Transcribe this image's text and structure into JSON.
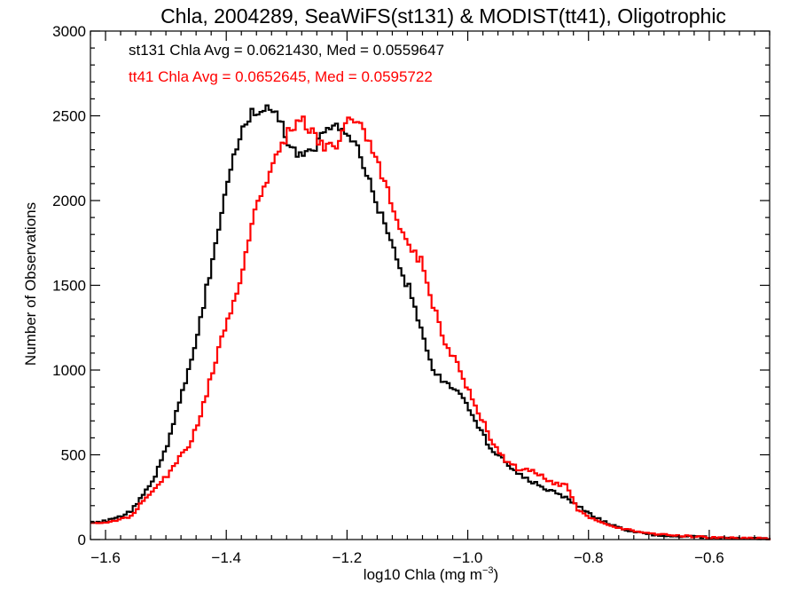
{
  "chart_data": {
    "type": "line",
    "title": "Chla, 2004289, SeaWiFS(st131) & MODIST(tt41), Oligotrophic",
    "xlabel_main": "log10 Chla (mg m",
    "xlabel_sup": "−3",
    "xlabel_end": ")",
    "ylabel": "Number of Observations",
    "xlim": [
      -1.625,
      -0.5
    ],
    "ylim": [
      0,
      3000
    ],
    "x_ticks": [
      -1.6,
      -1.4,
      -1.2,
      -1.0,
      -0.8,
      -0.6
    ],
    "x_tick_labels": [
      "−1.6",
      "−1.4",
      "−1.2",
      "−1.0",
      "−0.8",
      "−0.6"
    ],
    "y_ticks": [
      0,
      500,
      1000,
      1500,
      2000,
      2500,
      3000
    ],
    "y_tick_labels": [
      "0",
      "500",
      "1000",
      "1500",
      "2000",
      "2500",
      "3000"
    ],
    "annotations": [
      {
        "text": "st131 Chla Avg = 0.0621430, Med = 0.0559647",
        "color": "#000000"
      },
      {
        "text": "tt41 Chla Avg = 0.0652645, Med = 0.0595722",
        "color": "#ff0000"
      }
    ],
    "series": [
      {
        "color": "#000000",
        "points": [
          [
            -1.625,
            100
          ],
          [
            -1.6,
            110
          ],
          [
            -1.58,
            130
          ],
          [
            -1.56,
            170
          ],
          [
            -1.54,
            260
          ],
          [
            -1.52,
            380
          ],
          [
            -1.5,
            560
          ],
          [
            -1.48,
            820
          ],
          [
            -1.46,
            1060
          ],
          [
            -1.44,
            1380
          ],
          [
            -1.42,
            1760
          ],
          [
            -1.4,
            2120
          ],
          [
            -1.38,
            2380
          ],
          [
            -1.36,
            2520
          ],
          [
            -1.34,
            2530
          ],
          [
            -1.32,
            2540
          ],
          [
            -1.3,
            2350
          ],
          [
            -1.28,
            2260
          ],
          [
            -1.26,
            2290
          ],
          [
            -1.24,
            2420
          ],
          [
            -1.22,
            2460
          ],
          [
            -1.2,
            2400
          ],
          [
            -1.18,
            2280
          ],
          [
            -1.16,
            2040
          ],
          [
            -1.14,
            1860
          ],
          [
            -1.12,
            1640
          ],
          [
            -1.1,
            1480
          ],
          [
            -1.08,
            1230
          ],
          [
            -1.06,
            1000
          ],
          [
            -1.04,
            920
          ],
          [
            -1.02,
            880
          ],
          [
            -1.0,
            780
          ],
          [
            -0.98,
            630
          ],
          [
            -0.96,
            520
          ],
          [
            -0.94,
            460
          ],
          [
            -0.92,
            390
          ],
          [
            -0.9,
            350
          ],
          [
            -0.88,
            310
          ],
          [
            -0.86,
            280
          ],
          [
            -0.84,
            250
          ],
          [
            -0.82,
            200
          ],
          [
            -0.8,
            150
          ],
          [
            -0.78,
            110
          ],
          [
            -0.76,
            80
          ],
          [
            -0.74,
            55
          ],
          [
            -0.72,
            40
          ],
          [
            -0.7,
            30
          ],
          [
            -0.66,
            20
          ],
          [
            -0.62,
            15
          ],
          [
            -0.58,
            10
          ],
          [
            -0.54,
            8
          ],
          [
            -0.5,
            5
          ]
        ]
      },
      {
        "color": "#ff0000",
        "points": [
          [
            -1.625,
            100
          ],
          [
            -1.6,
            100
          ],
          [
            -1.58,
            115
          ],
          [
            -1.56,
            140
          ],
          [
            -1.54,
            230
          ],
          [
            -1.52,
            300
          ],
          [
            -1.5,
            380
          ],
          [
            -1.48,
            480
          ],
          [
            -1.46,
            580
          ],
          [
            -1.44,
            800
          ],
          [
            -1.42,
            1060
          ],
          [
            -1.4,
            1300
          ],
          [
            -1.38,
            1500
          ],
          [
            -1.36,
            1880
          ],
          [
            -1.34,
            2060
          ],
          [
            -1.32,
            2250
          ],
          [
            -1.3,
            2400
          ],
          [
            -1.28,
            2490
          ],
          [
            -1.26,
            2400
          ],
          [
            -1.24,
            2310
          ],
          [
            -1.22,
            2320
          ],
          [
            -1.2,
            2490
          ],
          [
            -1.18,
            2470
          ],
          [
            -1.16,
            2280
          ],
          [
            -1.14,
            2120
          ],
          [
            -1.12,
            1890
          ],
          [
            -1.1,
            1740
          ],
          [
            -1.08,
            1640
          ],
          [
            -1.06,
            1390
          ],
          [
            -1.04,
            1150
          ],
          [
            -1.02,
            1040
          ],
          [
            -1.0,
            870
          ],
          [
            -0.98,
            720
          ],
          [
            -0.96,
            560
          ],
          [
            -0.94,
            470
          ],
          [
            -0.92,
            420
          ],
          [
            -0.9,
            410
          ],
          [
            -0.88,
            380
          ],
          [
            -0.86,
            330
          ],
          [
            -0.84,
            320
          ],
          [
            -0.82,
            170
          ],
          [
            -0.8,
            130
          ],
          [
            -0.78,
            100
          ],
          [
            -0.76,
            80
          ],
          [
            -0.74,
            60
          ],
          [
            -0.72,
            45
          ],
          [
            -0.7,
            35
          ],
          [
            -0.66,
            25
          ],
          [
            -0.62,
            15
          ],
          [
            -0.58,
            10
          ],
          [
            -0.54,
            8
          ],
          [
            -0.5,
            5
          ]
        ]
      }
    ]
  }
}
